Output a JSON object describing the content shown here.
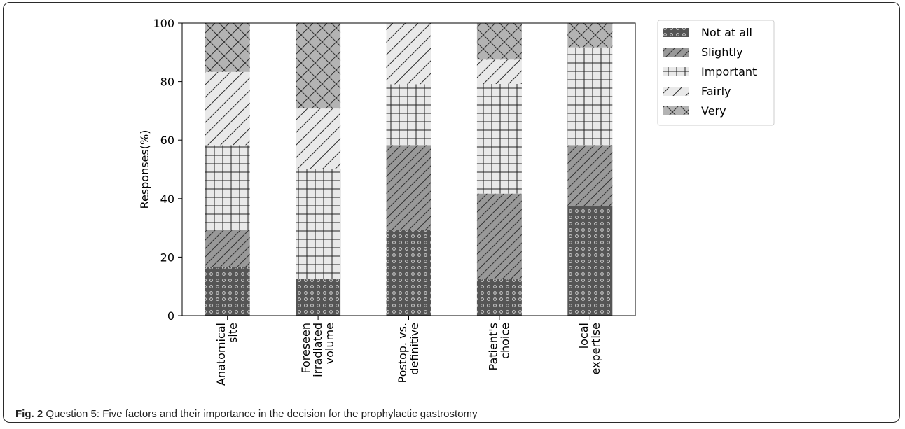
{
  "chart_data": {
    "type": "bar",
    "stacked": true,
    "categories": [
      [
        "Anatomical",
        "site"
      ],
      [
        "Foreseen",
        "irradiated",
        "volume"
      ],
      [
        "Postop. vs.",
        "definitive"
      ],
      [
        "Patient's",
        "choice"
      ],
      [
        "local",
        "expertise"
      ]
    ],
    "series": [
      {
        "name": "Not at all",
        "values": [
          16.7,
          12.5,
          29.2,
          12.5,
          37.5
        ],
        "fill": "#555555",
        "pattern": "circles"
      },
      {
        "name": "Slightly",
        "values": [
          12.5,
          0,
          29.1,
          29.2,
          20.8
        ],
        "fill": "#999999",
        "pattern": "diag"
      },
      {
        "name": "Important",
        "values": [
          29.1,
          37.5,
          20.8,
          37.5,
          33.4
        ],
        "fill": "#e9e9e9",
        "pattern": "grid"
      },
      {
        "name": "Fairly",
        "values": [
          25.0,
          20.8,
          20.9,
          8.3,
          0
        ],
        "fill": "#e9e9e9",
        "pattern": "diag"
      },
      {
        "name": "Very",
        "values": [
          16.7,
          29.2,
          0,
          12.5,
          8.3
        ],
        "fill": "#b3b3b3",
        "pattern": "cross"
      }
    ],
    "ylabel": "Responses(%)",
    "xlabel": "",
    "ylim": [
      0,
      100
    ],
    "yticks": [
      0,
      20,
      40,
      60,
      80,
      100
    ],
    "grid": false,
    "legend_position": "top-right"
  },
  "caption": {
    "label": "Fig. 2",
    "text": "Question 5: Five factors and their importance in the decision for the prophylactic gastrostomy"
  }
}
